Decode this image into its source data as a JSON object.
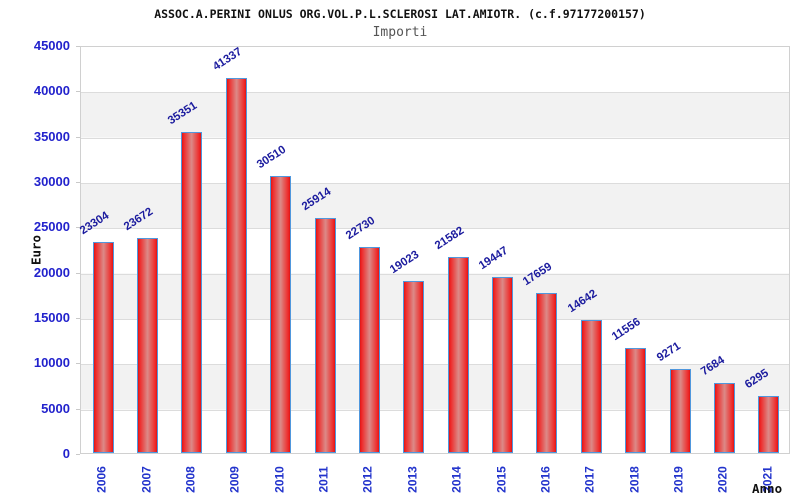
{
  "header": {
    "title": "ASSOC.A.PERINI ONLUS ORG.VOL.P.L.SCLEROSI LAT.AMIOTR. (c.f.97177200157)",
    "subtitle": "Importi"
  },
  "chart_data": {
    "type": "bar",
    "title": "ASSOC.A.PERINI ONLUS ORG.VOL.P.L.SCLEROSI LAT.AMIOTR. (c.f.97177200157)",
    "subtitle": "Importi",
    "xlabel": "Anno",
    "ylabel": "Euro",
    "categories": [
      "2006",
      "2007",
      "2008",
      "2009",
      "2010",
      "2011",
      "2012",
      "2013",
      "2014",
      "2015",
      "2016",
      "2017",
      "2018",
      "2019",
      "2020",
      "2021"
    ],
    "values": [
      23304,
      23672,
      35351,
      41337,
      30510,
      25914,
      22730,
      19023,
      21582,
      19447,
      17659,
      14642,
      11556,
      9271,
      7684,
      6295
    ],
    "ylim": [
      0,
      45000
    ],
    "yticks": [
      0,
      5000,
      10000,
      15000,
      20000,
      25000,
      30000,
      35000,
      40000,
      45000
    ],
    "grid": "horizontal gridlines with alternating white/gray bands",
    "legend": "none",
    "colors": {
      "bar_fill": "#e01414",
      "bar_fill_highlight": "#dc8a88",
      "bar_border": "#4f97dd",
      "value_label": "#1b1b9e",
      "axis_tick_label": "#2222cc",
      "band_gray": "#f2f2f2",
      "gridline": "#dcdcdc",
      "title_text": "#111111",
      "subtitle_text": "#555555"
    }
  }
}
